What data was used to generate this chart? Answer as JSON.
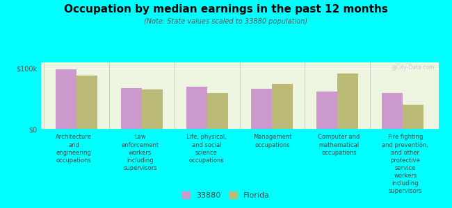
{
  "title": "Occupation by median earnings in the past 12 months",
  "subtitle": "(Note: State values scaled to 33880 population)",
  "categories": [
    "Architecture\nand\nengineering\noccupations",
    "Law\nenforcement\nworkers\nincluding\nsupervisors",
    "Life, physical,\nand social\nscience\noccupations",
    "Management\noccupations",
    "Computer and\nmathematical\noccupations",
    "Fire fighting\nand prevention,\nand other\nprotective\nservice\nworkers\nincluding\nsupervisors"
  ],
  "values_33880": [
    98000,
    68000,
    70000,
    66000,
    62000,
    60000
  ],
  "values_florida": [
    88000,
    65000,
    60000,
    74000,
    92000,
    40000
  ],
  "color_33880": "#cc99cc",
  "color_florida": "#bbbb77",
  "background_color": "#00ffff",
  "plot_bg_color": "#eef5e0",
  "yticks": [
    0,
    100000
  ],
  "ytick_labels": [
    "$0",
    "$100k"
  ],
  "watermark": "@City-Data.com",
  "legend_label_33880": "33880",
  "legend_label_florida": "Florida"
}
